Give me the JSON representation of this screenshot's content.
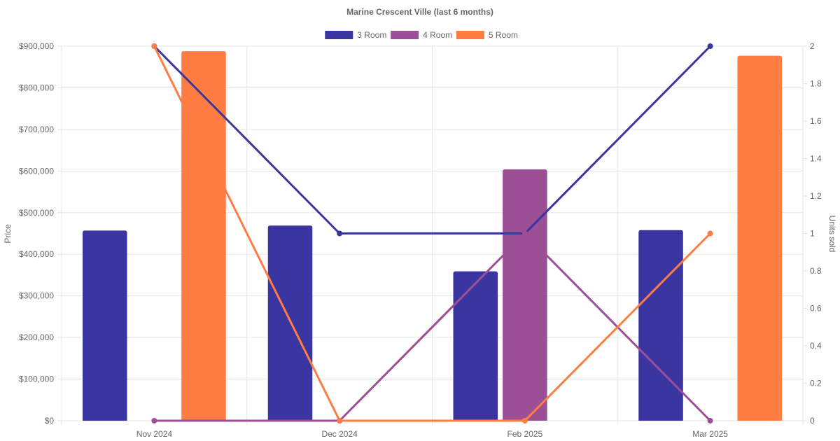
{
  "chart_data": {
    "type": "bar",
    "title": "Marine Crescent Ville (last 6 months)",
    "categories": [
      "Nov 2024",
      "Dec 2024",
      "Feb 2025",
      "Mar 2025"
    ],
    "legend_position": "top",
    "grid": true,
    "y_left": {
      "label": "Price",
      "min": 0,
      "max": 900000,
      "step": 100000,
      "ticks": [
        "$0",
        "$100,000",
        "$200,000",
        "$300,000",
        "$400,000",
        "$500,000",
        "$600,000",
        "$700,000",
        "$800,000",
        "$900,000"
      ]
    },
    "y_right": {
      "label": "Units sold",
      "min": 0,
      "max": 2,
      "step": 0.2,
      "ticks": [
        "0",
        "0.2",
        "0.4",
        "0.6",
        "0.8",
        "1",
        "1.2",
        "1.4",
        "1.6",
        "1.8",
        "2"
      ]
    },
    "series": [
      {
        "name": "3 Room",
        "color": "#3a35a0",
        "price": [
          457000,
          469000,
          359000,
          458000
        ],
        "units": [
          2,
          1,
          1,
          2
        ]
      },
      {
        "name": "4 Room",
        "color": "#9d4f95",
        "price": [
          0,
          0,
          604000,
          0
        ],
        "units": [
          0,
          0,
          1,
          0
        ]
      },
      {
        "name": "5 Room",
        "color": "#ff7c43",
        "price": [
          888000,
          0,
          0,
          877000
        ],
        "units": [
          2,
          0,
          0,
          1
        ]
      }
    ]
  }
}
